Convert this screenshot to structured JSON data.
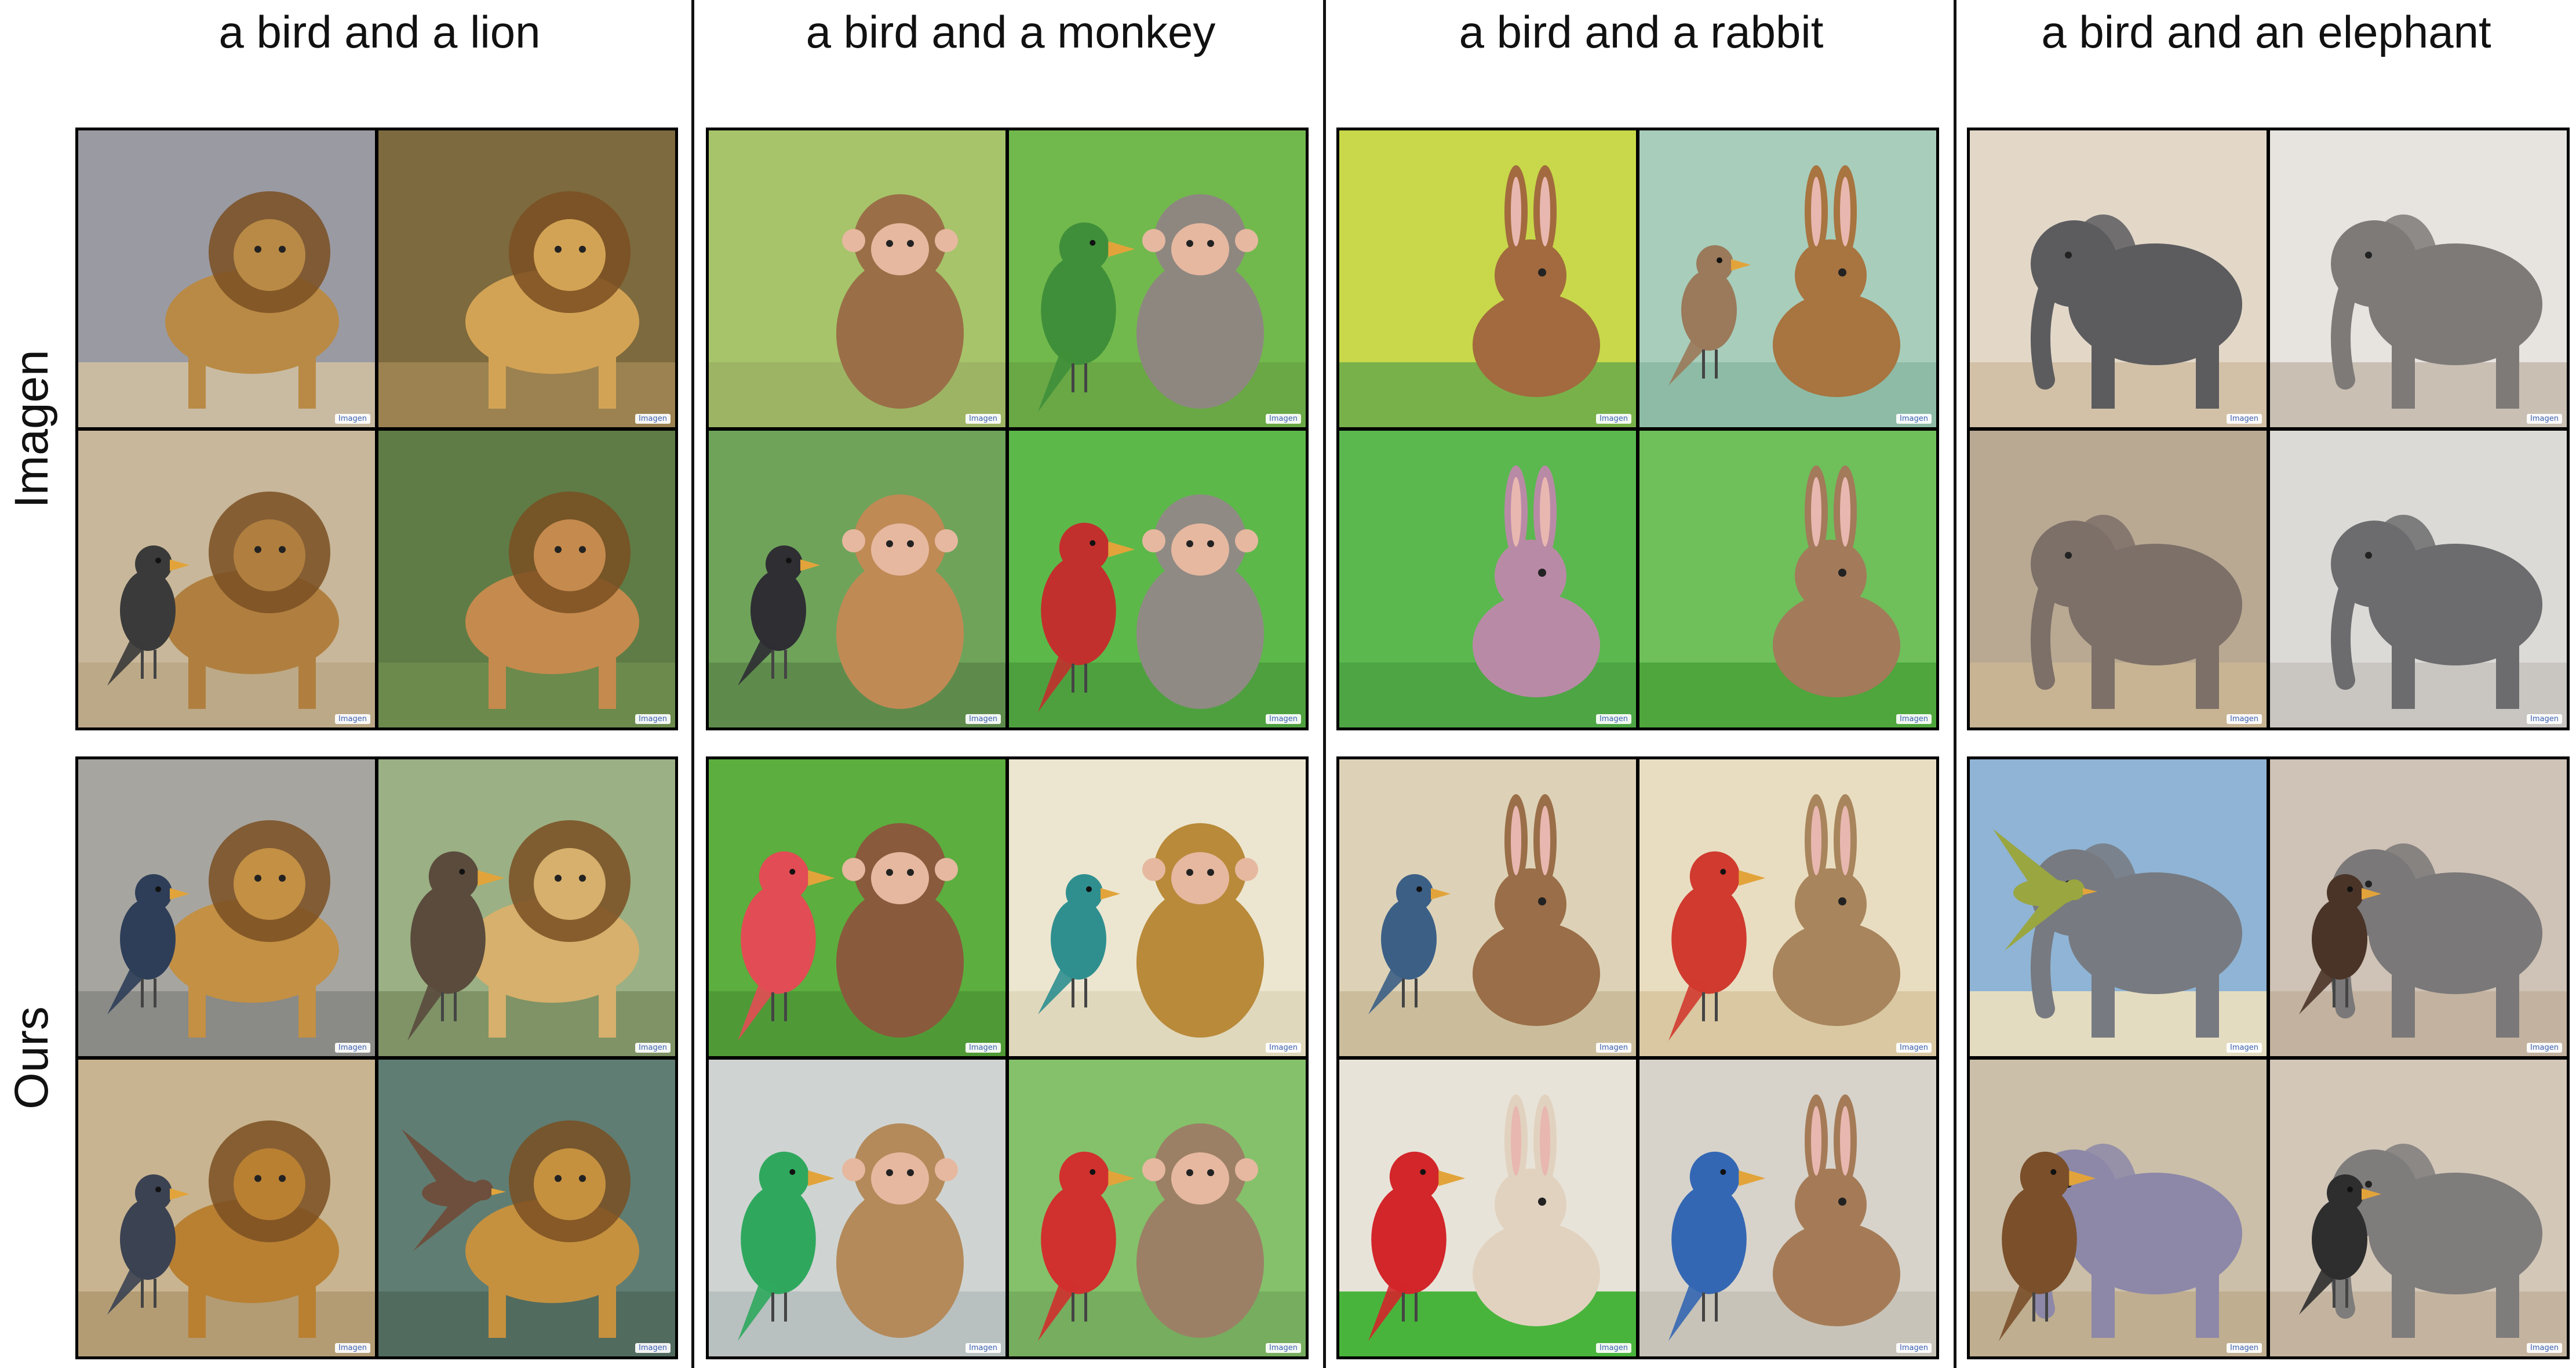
{
  "columns": [
    "a bird and a lion",
    "a bird and a monkey",
    "a bird and a rabbit",
    "a bird and an elephant"
  ],
  "rows": [
    "Imagen",
    "Ours"
  ],
  "watermark": "Imagen",
  "panels": [
    {
      "column": 0,
      "row": 0,
      "tiles": [
        {
          "bird": "none",
          "animal": "lion",
          "bg": "#9a9aa3",
          "ground": "#c9bba2",
          "animalColor": "#b98a45",
          "birdColor": "#555555"
        },
        {
          "bird": "none",
          "animal": "lion",
          "bg": "#7d6a3e",
          "ground": "#9b8250",
          "animalColor": "#d3a355",
          "birdColor": "#555555"
        },
        {
          "bird": "small",
          "animal": "lion",
          "bg": "#c8b79a",
          "ground": "#bca987",
          "animalColor": "#b07f3f",
          "birdColor": "#3a3a3a"
        },
        {
          "bird": "none",
          "animal": "lion",
          "bg": "#5f7c46",
          "ground": "#6b8a4c",
          "animalColor": "#c58a4d",
          "birdColor": "#555555"
        }
      ]
    },
    {
      "column": 0,
      "row": 1,
      "tiles": [
        {
          "bird": "hornbill",
          "animal": "lion",
          "bg": "#a7a5a0",
          "ground": "#8a8a86",
          "animalColor": "#c39044",
          "birdColor": "#2e3e58"
        },
        {
          "bird": "vulture",
          "animal": "lion",
          "bg": "#9bb084",
          "ground": "#7f9366",
          "animalColor": "#d6b06c",
          "birdColor": "#5a4b3d"
        },
        {
          "bird": "hawk",
          "animal": "lion",
          "bg": "#c8b490",
          "ground": "#b39c74",
          "animalColor": "#b98032",
          "birdColor": "#3b4252"
        },
        {
          "bird": "flying",
          "animal": "lion",
          "bg": "#5f7d73",
          "ground": "#516b5f",
          "animalColor": "#c5913f",
          "birdColor": "#6e4f3d"
        }
      ]
    },
    {
      "column": 1,
      "row": 0,
      "tiles": [
        {
          "bird": "none",
          "animal": "monkey",
          "bg": "#a7c46a",
          "ground": "#9db464",
          "animalColor": "#9a6f47",
          "birdColor": "#7f8f2e"
        },
        {
          "bird": "parrot",
          "animal": "monkey",
          "bg": "#72b94d",
          "ground": "#69a845",
          "animalColor": "#8e8780",
          "birdColor": "#3f8f3a"
        },
        {
          "bird": "crow",
          "animal": "monkey",
          "bg": "#6fa35a",
          "ground": "#5e8b4c",
          "animalColor": "#c08a55",
          "birdColor": "#2e2e33"
        },
        {
          "bird": "parrot",
          "animal": "monkey",
          "bg": "#5db84a",
          "ground": "#4ea03f",
          "animalColor": "#8f8a84",
          "birdColor": "#c2302d"
        }
      ]
    },
    {
      "column": 1,
      "row": 1,
      "tiles": [
        {
          "bird": "colorful",
          "animal": "monkey",
          "bg": "#5cae3e",
          "ground": "#4f9a36",
          "animalColor": "#8a5a3d",
          "birdColor": "#e24c54"
        },
        {
          "bird": "teal",
          "animal": "monkey",
          "bg": "#ece6d0",
          "ground": "#e0d8bc",
          "animalColor": "#b98a3a",
          "birdColor": "#2f8f8f"
        },
        {
          "bird": "colorful",
          "animal": "monkey",
          "bg": "#cfd4d2",
          "ground": "#b9c0c0",
          "animalColor": "#b48a5a",
          "birdColor": "#2fa85e"
        },
        {
          "bird": "parrot",
          "animal": "monkey",
          "bg": "#85c16a",
          "ground": "#76ad5e",
          "animalColor": "#9b8066",
          "birdColor": "#d0302e"
        }
      ]
    },
    {
      "column": 2,
      "row": 0,
      "tiles": [
        {
          "bird": "none",
          "animal": "rabbit",
          "bg": "#c8d84a",
          "ground": "#78b14a",
          "animalColor": "#a26a3e",
          "birdColor": "#4f7b91"
        },
        {
          "bird": "small",
          "animal": "rabbit",
          "bg": "#a8cdbb",
          "ground": "#8dbba6",
          "animalColor": "#a8743f",
          "birdColor": "#9a7a5a"
        },
        {
          "bird": "none",
          "animal": "rabbit",
          "bg": "#5ab84e",
          "ground": "#4da544",
          "animalColor": "#b98aa6",
          "birdColor": "#7a6a9a"
        },
        {
          "bird": "none",
          "animal": "rabbit",
          "bg": "#6fbf5a",
          "ground": "#4ea63c",
          "animalColor": "#a37a5a",
          "birdColor": "#555555"
        }
      ]
    },
    {
      "column": 2,
      "row": 1,
      "tiles": [
        {
          "bird": "songbird",
          "animal": "rabbit",
          "bg": "#ddd2b7",
          "ground": "#cbbd9c",
          "animalColor": "#9a6e48",
          "birdColor": "#3c5f86"
        },
        {
          "bird": "colorful",
          "animal": "rabbit",
          "bg": "#e9ddc1",
          "ground": "#d9c8a2",
          "animalColor": "#a8855c",
          "birdColor": "#d03a2f"
        },
        {
          "bird": "colorful",
          "animal": "rabbit",
          "bg": "#e8e3d8",
          "ground": "#49b43c",
          "animalColor": "#e1d2bf",
          "birdColor": "#d2262a"
        },
        {
          "bird": "colorful",
          "animal": "rabbit",
          "bg": "#d7d3cb",
          "ground": "#c8c3b8",
          "animalColor": "#a57b57",
          "birdColor": "#3467b3"
        }
      ]
    },
    {
      "column": 3,
      "row": 0,
      "tiles": [
        {
          "bird": "none",
          "animal": "elephant",
          "bg": "#e3d8c8",
          "ground": "#d2c1a7",
          "animalColor": "#5c5c5f",
          "birdColor": "#555555"
        },
        {
          "bird": "none",
          "animal": "elephant",
          "bg": "#e7e4e0",
          "ground": "#c9bfb3",
          "animalColor": "#7d7a78",
          "birdColor": "#555555"
        },
        {
          "bird": "none",
          "animal": "elephant",
          "bg": "#b9a993",
          "ground": "#c8b493",
          "animalColor": "#7c7068",
          "birdColor": "#555555"
        },
        {
          "bird": "none",
          "animal": "elephant",
          "bg": "#dcdad7",
          "ground": "#c9c6c2",
          "animalColor": "#6c6c6e",
          "birdColor": "#555555"
        }
      ]
    },
    {
      "column": 3,
      "row": 1,
      "tiles": [
        {
          "bird": "flying",
          "animal": "elephant",
          "bg": "#8fb4d5",
          "ground": "#e4dcc0",
          "animalColor": "#777a80",
          "birdColor": "#9aa640"
        },
        {
          "bird": "hawk",
          "animal": "elephant",
          "bg": "#cfc2b6",
          "ground": "#c3b29f",
          "animalColor": "#7a7878",
          "birdColor": "#4a3428"
        },
        {
          "bird": "heron",
          "animal": "elephant",
          "bg": "#cbbfa9",
          "ground": "#bfae90",
          "animalColor": "#8d88a8",
          "birdColor": "#7a4f2a"
        },
        {
          "bird": "small",
          "animal": "elephant",
          "bg": "#d3c7b8",
          "ground": "#c4b49f",
          "animalColor": "#7f7c7c",
          "birdColor": "#2e2e2e"
        }
      ]
    }
  ]
}
